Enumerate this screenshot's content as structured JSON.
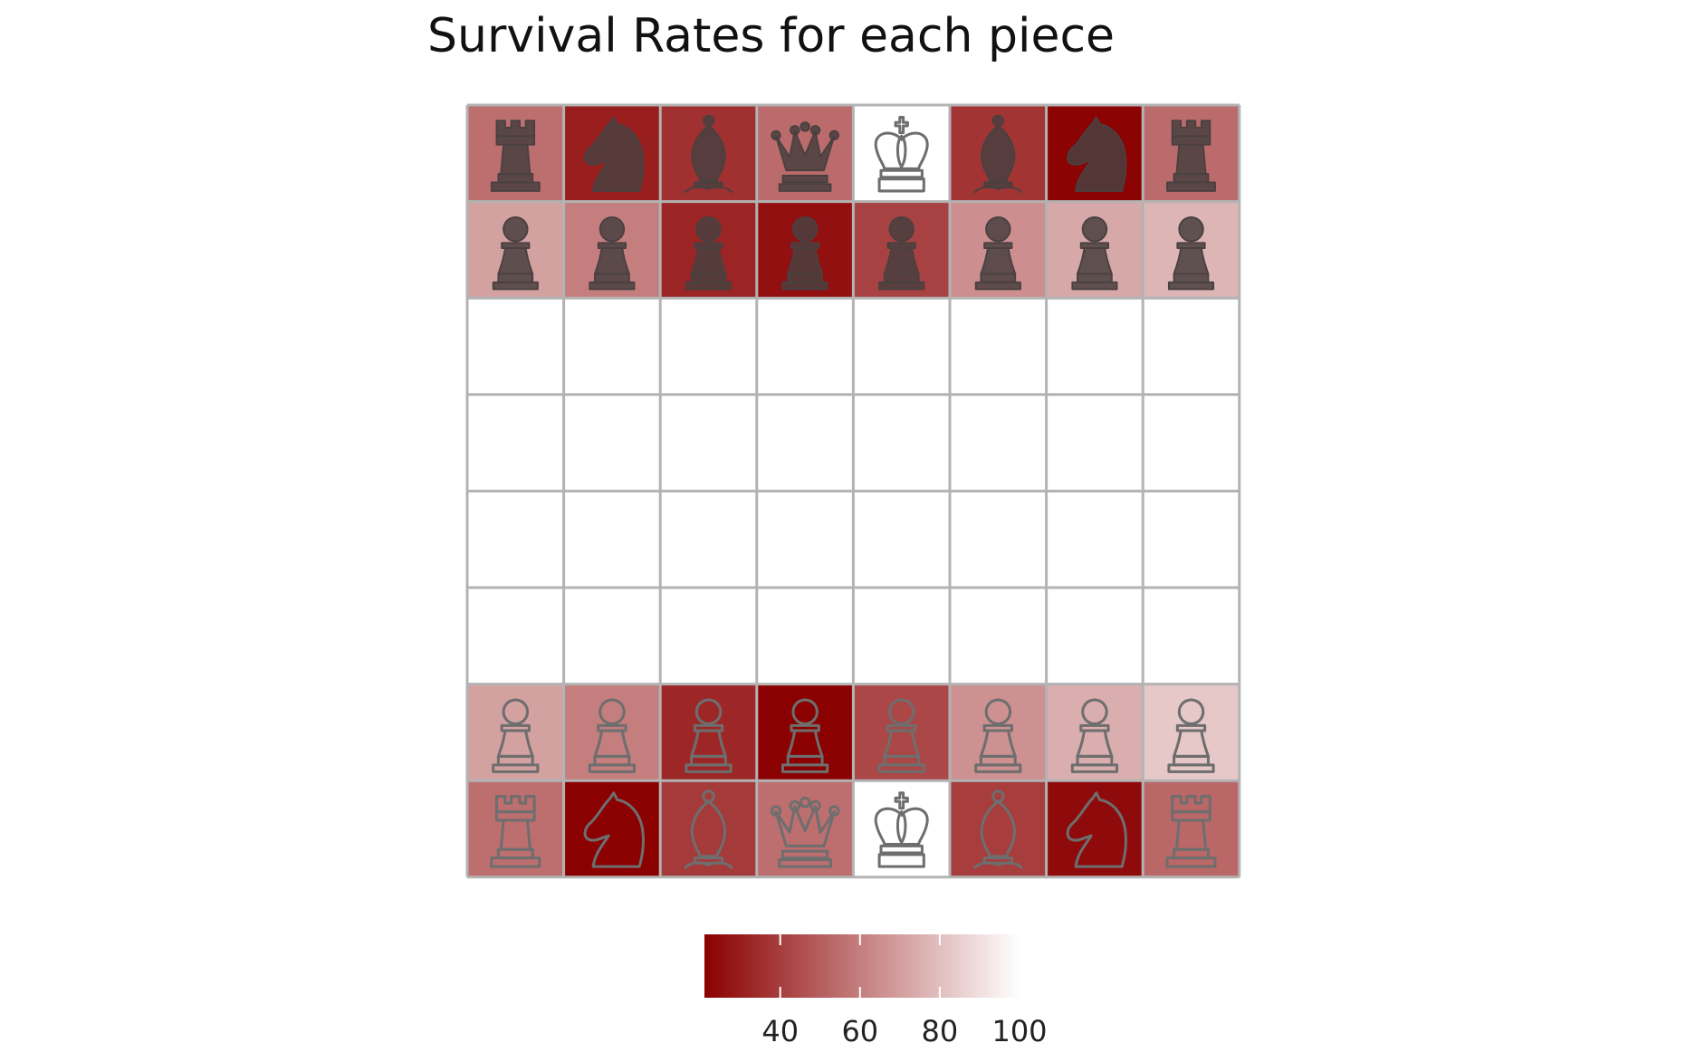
{
  "chart_data": {
    "type": "heatmap",
    "title": "Survival Rates for each piece",
    "xlabel": "",
    "ylabel": "",
    "legend": {
      "position": "bottom",
      "ticks": [
        40,
        60,
        80,
        100
      ],
      "range": [
        21,
        100
      ],
      "low_color": "#8b0000",
      "high_color": "#ffffff"
    },
    "grid_color": "#b3b3b3",
    "piece_color_dark": "#4a4040",
    "piece_color_outline": "#6e6e6e",
    "board": {
      "files": 8,
      "ranks": 8,
      "cells": [
        {
          "row": 0,
          "col": 0,
          "piece": "rook",
          "style": "filled",
          "value": 55
        },
        {
          "row": 0,
          "col": 1,
          "piece": "knight",
          "style": "filled",
          "value": 30
        },
        {
          "row": 0,
          "col": 2,
          "piece": "bishop",
          "style": "filled",
          "value": 36
        },
        {
          "row": 0,
          "col": 3,
          "piece": "queen",
          "style": "filled",
          "value": 54
        },
        {
          "row": 0,
          "col": 4,
          "piece": "king",
          "style": "outline",
          "value": 100
        },
        {
          "row": 0,
          "col": 5,
          "piece": "bishop",
          "style": "filled",
          "value": 37
        },
        {
          "row": 0,
          "col": 6,
          "piece": "knight",
          "style": "filled",
          "value": 22
        },
        {
          "row": 0,
          "col": 7,
          "piece": "rook",
          "style": "filled",
          "value": 54
        },
        {
          "row": 1,
          "col": 0,
          "piece": "pawn",
          "style": "filled",
          "value": 71
        },
        {
          "row": 1,
          "col": 1,
          "piece": "pawn",
          "style": "filled",
          "value": 60
        },
        {
          "row": 1,
          "col": 2,
          "piece": "pawn",
          "style": "filled",
          "value": 32
        },
        {
          "row": 1,
          "col": 3,
          "piece": "pawn",
          "style": "filled",
          "value": 26
        },
        {
          "row": 1,
          "col": 4,
          "piece": "pawn",
          "style": "filled",
          "value": 41
        },
        {
          "row": 1,
          "col": 5,
          "piece": "pawn",
          "style": "filled",
          "value": 65
        },
        {
          "row": 1,
          "col": 6,
          "piece": "pawn",
          "style": "filled",
          "value": 73
        },
        {
          "row": 1,
          "col": 7,
          "piece": "pawn",
          "style": "filled",
          "value": 77
        },
        {
          "row": 6,
          "col": 0,
          "piece": "pawn",
          "style": "outline",
          "value": 71
        },
        {
          "row": 6,
          "col": 1,
          "piece": "pawn",
          "style": "outline",
          "value": 60
        },
        {
          "row": 6,
          "col": 2,
          "piece": "pawn",
          "style": "outline",
          "value": 33
        },
        {
          "row": 6,
          "col": 3,
          "piece": "pawn",
          "style": "outline",
          "value": 21
        },
        {
          "row": 6,
          "col": 4,
          "piece": "pawn",
          "style": "outline",
          "value": 43
        },
        {
          "row": 6,
          "col": 5,
          "piece": "pawn",
          "style": "outline",
          "value": 66
        },
        {
          "row": 6,
          "col": 6,
          "piece": "pawn",
          "style": "outline",
          "value": 75
        },
        {
          "row": 6,
          "col": 7,
          "piece": "pawn",
          "style": "outline",
          "value": 83
        },
        {
          "row": 7,
          "col": 0,
          "piece": "rook",
          "style": "outline",
          "value": 55
        },
        {
          "row": 7,
          "col": 1,
          "piece": "knight",
          "style": "outline",
          "value": 21
        },
        {
          "row": 7,
          "col": 2,
          "piece": "bishop",
          "style": "outline",
          "value": 39
        },
        {
          "row": 7,
          "col": 3,
          "piece": "queen",
          "style": "outline",
          "value": 55
        },
        {
          "row": 7,
          "col": 4,
          "piece": "king",
          "style": "outline",
          "value": 100
        },
        {
          "row": 7,
          "col": 5,
          "piece": "bishop",
          "style": "outline",
          "value": 40
        },
        {
          "row": 7,
          "col": 6,
          "piece": "knight",
          "style": "outline",
          "value": 24
        },
        {
          "row": 7,
          "col": 7,
          "piece": "rook",
          "style": "outline",
          "value": 53
        }
      ]
    }
  }
}
